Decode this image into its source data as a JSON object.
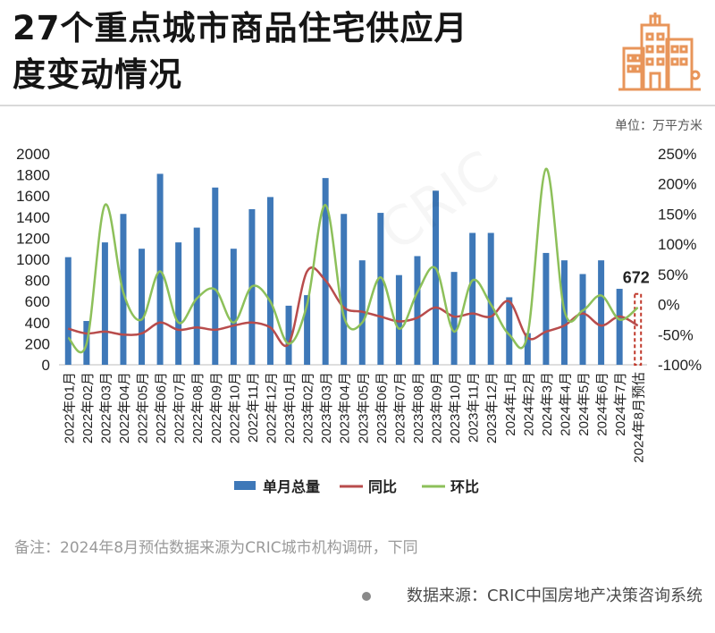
{
  "header": {
    "title_line1": "27个重点城市商品住宅供应月",
    "title_line2": "度变动情况",
    "logo_icon": "city-buildings-icon",
    "accent_color": "#e8955a"
  },
  "unit_label": "单位：万平方米",
  "note": "备注：2024年8月预估数据来源为CRIC城市机构调研，下同",
  "source": "数据来源：CRIC中国房地产决策咨询系统",
  "chart_data": {
    "type": "bar",
    "categories": [
      "2022年01月",
      "2022年02月",
      "2022年03月",
      "2022年04月",
      "2022年05月",
      "2022年06月",
      "2022年07月",
      "2022年08月",
      "2022年09月",
      "2022年10月",
      "2022年11月",
      "2022年12月",
      "2023年01月",
      "2023年02月",
      "2023年03月",
      "2023年04月",
      "2023年05月",
      "2023年06月",
      "2023年07月",
      "2023年08月",
      "2023年09月",
      "2023年10月",
      "2023年11月",
      "2023年12月",
      "2024年1月",
      "2024年2月",
      "2024年3月",
      "2024年4月",
      "2024年5月",
      "2024年6月",
      "2024年7月",
      "2024年8月预估"
    ],
    "y_left_ticks": [
      "0",
      "200",
      "400",
      "600",
      "800",
      "1000",
      "1200",
      "1400",
      "1600",
      "1800",
      "2000"
    ],
    "y_right_ticks": [
      "-100%",
      "-50%",
      "0%",
      "50%",
      "100%",
      "150%",
      "200%",
      "250%"
    ],
    "ylim_left": [
      0,
      2000
    ],
    "ylim_right": [
      -100,
      250
    ],
    "series": [
      {
        "name": "单月总量",
        "kind": "bar",
        "axis": "left",
        "color": "#3e78b8",
        "values": [
          1020,
          415,
          1160,
          1430,
          1100,
          1810,
          1160,
          1300,
          1680,
          1100,
          1475,
          1590,
          560,
          660,
          1770,
          1430,
          990,
          1440,
          850,
          1030,
          1650,
          880,
          1250,
          1250,
          640,
          300,
          1060,
          990,
          860,
          990,
          720,
          672
        ]
      },
      {
        "name": "同比",
        "kind": "line",
        "axis": "right",
        "color": "#b84c4c",
        "values": [
          -40,
          -48,
          -45,
          -50,
          -48,
          -30,
          -42,
          -38,
          -42,
          -35,
          -30,
          -38,
          -65,
          55,
          40,
          -5,
          -12,
          -20,
          -28,
          -22,
          -5,
          -20,
          -15,
          -20,
          5,
          -55,
          -45,
          -35,
          -15,
          -35,
          -20,
          -35
        ]
      },
      {
        "name": "环比",
        "kind": "line",
        "axis": "right",
        "color": "#8dc05a",
        "values": [
          -55,
          -65,
          165,
          20,
          -25,
          55,
          -30,
          10,
          25,
          -30,
          30,
          5,
          -65,
          0,
          165,
          -20,
          -30,
          45,
          -40,
          20,
          60,
          -45,
          40,
          0,
          -50,
          -50,
          225,
          -10,
          -10,
          15,
          -25,
          -5
        ]
      }
    ],
    "highlight_label": "672",
    "highlight_color": "#c0392b",
    "legend_position": "bottom",
    "grid": false
  }
}
